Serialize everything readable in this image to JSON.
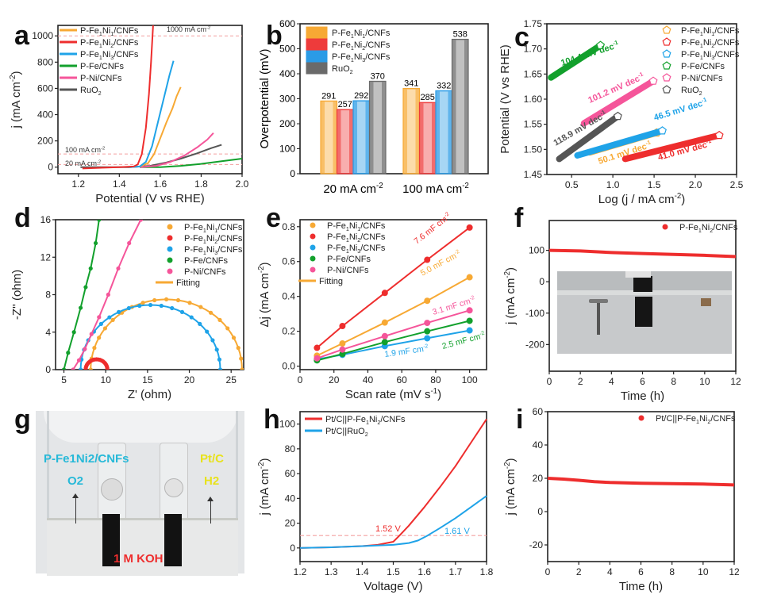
{
  "panel_labels": [
    "a",
    "b",
    "c",
    "d",
    "e",
    "f",
    "g",
    "h",
    "i"
  ],
  "chart_data": [
    {
      "id": "a",
      "type": "line",
      "title": "",
      "xlabel": "Potential (V vs RHE)",
      "ylabel": "j (mA cm-2)",
      "xlim": [
        1.1,
        2.0
      ],
      "ylim": [
        -50,
        1080
      ],
      "xticks": [
        1.2,
        1.4,
        1.6,
        1.8,
        2.0
      ],
      "xtick_labels": [
        "1.2",
        "1.4",
        "1.6",
        "1.8",
        "2.0"
      ],
      "yticks": [
        0,
        200,
        400,
        600,
        800,
        1000
      ],
      "ytick_labels": [
        "0",
        "200",
        "400",
        "600",
        "800",
        "1000"
      ],
      "legend_position": "top-left",
      "reference_lines": [
        {
          "y": 1000,
          "label": "1000 mA cm-2"
        },
        {
          "y": 100,
          "label": "100 mA cm-2"
        },
        {
          "y": 20,
          "label": "20 mA cm-2"
        }
      ],
      "series": [
        {
          "name": "P-Fe1Ni1/CNFs",
          "color": "#f7a934",
          "x": [
            1.45,
            1.5,
            1.54,
            1.57,
            1.6,
            1.63,
            1.66,
            1.68,
            1.7
          ],
          "y": [
            0,
            5,
            30,
            100,
            220,
            340,
            450,
            540,
            610
          ]
        },
        {
          "name": "P-Fe1Ni2/CNFs",
          "color": "#ee2d2d",
          "x": [
            1.22,
            1.4,
            1.47,
            1.49,
            1.51,
            1.53,
            1.545,
            1.555,
            1.565
          ],
          "y": [
            -10,
            0,
            5,
            20,
            100,
            300,
            560,
            800,
            1080
          ]
        },
        {
          "name": "P-Fe1Ni3/CNFs",
          "color": "#1fa3e8",
          "x": [
            1.45,
            1.5,
            1.53,
            1.56,
            1.59,
            1.62,
            1.645,
            1.665
          ],
          "y": [
            0,
            5,
            40,
            160,
            350,
            540,
            700,
            810
          ]
        },
        {
          "name": "P-Fe/CNFs",
          "color": "#12a02c",
          "x": [
            1.5,
            1.6,
            1.7,
            1.8,
            1.9,
            2.0
          ],
          "y": [
            0,
            0,
            10,
            25,
            45,
            65
          ]
        },
        {
          "name": "P-Ni/CNFs",
          "color": "#f5559a",
          "x": [
            1.5,
            1.58,
            1.65,
            1.72,
            1.78,
            1.83,
            1.86
          ],
          "y": [
            0,
            10,
            40,
            90,
            150,
            210,
            260
          ]
        },
        {
          "name": "RuO2",
          "color": "#555555",
          "x": [
            1.21,
            1.45,
            1.55,
            1.63,
            1.7,
            1.78,
            1.85,
            1.9
          ],
          "y": [
            0,
            0,
            10,
            35,
            65,
            105,
            145,
            170
          ]
        }
      ]
    },
    {
      "id": "b",
      "type": "bar",
      "title": "",
      "xlabel": "",
      "ylabel": "Overpotential (mV)",
      "ylim": [
        0,
        600
      ],
      "yticks": [
        0,
        100,
        200,
        300,
        400,
        500,
        600
      ],
      "ytick_labels": [
        "0",
        "100",
        "200",
        "300",
        "400",
        "500",
        "600"
      ],
      "categories": [
        "20 mA cm-2",
        "100 mA cm-2"
      ],
      "legend_position": "top-left",
      "series": [
        {
          "name": "P-Fe1Ni1/CNFs",
          "color": "#f7a934",
          "values": [
            291,
            341
          ]
        },
        {
          "name": "P-Fe1Ni2/CNFs",
          "color": "#ee3b3b",
          "values": [
            257,
            285
          ]
        },
        {
          "name": "P-Fe1Ni3/CNFs",
          "color": "#2a9be6",
          "values": [
            292,
            332
          ]
        },
        {
          "name": "RuO2",
          "color": "#6a6a6a",
          "values": [
            370,
            538
          ]
        }
      ]
    },
    {
      "id": "c",
      "type": "scatter",
      "title": "",
      "xlabel": "Log (j / mA cm-2)",
      "ylabel": "Potential (V vs RHE)",
      "xlim": [
        0.2,
        2.5
      ],
      "ylim": [
        1.45,
        1.75
      ],
      "xticks": [
        0.5,
        1.0,
        1.5,
        2.0,
        2.5
      ],
      "xtick_labels": [
        "0.5",
        "1.0",
        "1.5",
        "2.0",
        "2.5"
      ],
      "yticks": [
        1.45,
        1.5,
        1.55,
        1.6,
        1.65,
        1.7,
        1.75
      ],
      "ytick_labels": [
        "1.45",
        "1.50",
        "1.55",
        "1.60",
        "1.65",
        "1.70",
        "1.75"
      ],
      "legend_position": "top-right",
      "series": [
        {
          "name": "P-Fe1Ni1/CNFs",
          "color": "#f7a934",
          "x_range": [
            0.72,
            1.53
          ],
          "y_range": [
            1.494,
            1.533
          ],
          "annotation": "50.1 mV dec-1"
        },
        {
          "name": "P-Fe1Ni2/CNFs",
          "color": "#ee2d2d",
          "x_range": [
            1.15,
            2.29
          ],
          "y_range": [
            1.481,
            1.528
          ],
          "annotation": "41.0 mV dec-1"
        },
        {
          "name": "P-Fe1Ni3/CNFs",
          "color": "#1fa3e8",
          "x_range": [
            0.57,
            1.6
          ],
          "y_range": [
            1.488,
            1.537
          ],
          "annotation": "46.5 mV dec-1"
        },
        {
          "name": "P-Fe/CNFs",
          "color": "#12a02c",
          "x_range": [
            0.25,
            0.85
          ],
          "y_range": [
            1.643,
            1.707
          ],
          "annotation": "104.4 mV dec-1"
        },
        {
          "name": "P-Ni/CNFs",
          "color": "#f5559a",
          "x_range": [
            0.65,
            1.49
          ],
          "y_range": [
            1.552,
            1.636
          ],
          "annotation": "101.2 mV dec-1"
        },
        {
          "name": "RuO2",
          "color": "#555555",
          "x_range": [
            0.35,
            1.06
          ],
          "y_range": [
            1.481,
            1.566
          ],
          "annotation": "118.9 mV dec-1"
        }
      ]
    },
    {
      "id": "d",
      "type": "scatter",
      "title": "",
      "xlabel": "Z' (ohm)",
      "ylabel": "-Z'' (ohm)",
      "xlim": [
        4,
        26.5
      ],
      "ylim": [
        0,
        16
      ],
      "xticks": [
        5,
        10,
        15,
        20,
        25
      ],
      "xtick_labels": [
        "5",
        "10",
        "15",
        "20",
        "25"
      ],
      "yticks": [
        0,
        4,
        8,
        12,
        16
      ],
      "ytick_labels": [
        "0",
        "4",
        "8",
        "12",
        "16"
      ],
      "legend_position": "top-right",
      "fitting_label": "Fitting",
      "series": [
        {
          "name": "P-Fe1Ni1/CNFs",
          "color": "#f7a934",
          "shape": "semicircle",
          "x_start": 8.2,
          "x_end": 26.3,
          "peak": 7.5
        },
        {
          "name": "P-Fe1Ni2/CNFs",
          "color": "#ee2d2d",
          "shape": "semicircle",
          "x_start": 7.6,
          "x_end": 10.2,
          "peak": 1.1
        },
        {
          "name": "P-Fe1Ni3/CNFs",
          "color": "#1fa3e8",
          "shape": "semicircle",
          "x_start": 7.0,
          "x_end": 23.7,
          "peak": 6.9
        },
        {
          "name": "P-Fe/CNFs",
          "color": "#12a02c",
          "shape": "line",
          "x": [
            5.0,
            5.5,
            6.2,
            7.0,
            7.6,
            8.2,
            8.8,
            9.2
          ],
          "y": [
            0,
            1.8,
            4,
            6.6,
            8.8,
            10.8,
            13.5,
            16
          ]
        },
        {
          "name": "P-Ni/CNFs",
          "color": "#f5559a",
          "shape": "line",
          "x": [
            6.1,
            6.8,
            7.5,
            8.3,
            9.2,
            10.3,
            11.5,
            12.8,
            14.2
          ],
          "y": [
            0,
            1,
            2.2,
            3.8,
            5.6,
            8,
            10.8,
            13.5,
            16
          ]
        }
      ]
    },
    {
      "id": "e",
      "type": "scatter",
      "title": "",
      "xlabel": "Scan rate (mV s-1)",
      "ylabel": "Δj (mA cm-2)",
      "xlim": [
        0,
        110
      ],
      "ylim": [
        -0.02,
        0.84
      ],
      "xticks": [
        0,
        20,
        40,
        60,
        80,
        100
      ],
      "xtick_labels": [
        "0",
        "20",
        "40",
        "60",
        "80",
        "100"
      ],
      "yticks": [
        0,
        0.2,
        0.4,
        0.6,
        0.8
      ],
      "ytick_labels": [
        "0.0",
        "0.2",
        "0.4",
        "0.6",
        "0.8"
      ],
      "legend_position": "top-left",
      "fitting_label": "Fitting",
      "x": [
        10,
        25,
        50,
        75,
        100
      ],
      "series": [
        {
          "name": "P-Fe1Ni1/CNFs",
          "color": "#f7a934",
          "values": [
            0.06,
            0.13,
            0.25,
            0.375,
            0.51
          ],
          "annotation": "5.0 mF cm-2"
        },
        {
          "name": "P-Fe1Ni2/CNFs",
          "color": "#ee2d2d",
          "values": [
            0.105,
            0.23,
            0.42,
            0.61,
            0.795
          ],
          "annotation": "7.6 mF cm-2"
        },
        {
          "name": "P-Fe1Ni3/CNFs",
          "color": "#1fa3e8",
          "values": [
            0.04,
            0.065,
            0.115,
            0.16,
            0.205
          ],
          "annotation": "1.9 mF cm-2"
        },
        {
          "name": "P-Fe/CNFs",
          "color": "#12a02c",
          "values": [
            0.033,
            0.07,
            0.138,
            0.2,
            0.26
          ],
          "annotation": "2.5 mF cm-2"
        },
        {
          "name": "P-Ni/CNFs",
          "color": "#f5559a",
          "values": [
            0.045,
            0.095,
            0.172,
            0.248,
            0.32
          ],
          "annotation": "3.1 mF cm-2"
        }
      ]
    },
    {
      "id": "f",
      "type": "line",
      "title": "",
      "xlabel": "Time (h)",
      "ylabel": "j (mA cm-2)",
      "xlim": [
        0,
        12
      ],
      "ylim": [
        -285,
        195
      ],
      "xticks": [
        0,
        2,
        4,
        6,
        8,
        10,
        12
      ],
      "xtick_labels": [
        "0",
        "2",
        "4",
        "6",
        "8",
        "10",
        "12"
      ],
      "yticks": [
        -200,
        -100,
        0,
        100
      ],
      "ytick_labels": [
        "-200",
        "-100",
        "0",
        "100"
      ],
      "legend_position": "top-right",
      "inset": "photo of electrodes in electrolyte",
      "series": [
        {
          "name": "P-Fe1Ni2/CNFs",
          "color": "#ee2d2d",
          "x": [
            0,
            2,
            4,
            6,
            8,
            10,
            12
          ],
          "y": [
            100,
            98,
            93,
            90,
            87,
            84,
            80
          ]
        }
      ]
    },
    {
      "id": "h",
      "type": "line",
      "title": "",
      "xlabel": "Voltage (V)",
      "ylabel": "j (mA cm-2)",
      "xlim": [
        1.2,
        1.8
      ],
      "ylim": [
        -11,
        110
      ],
      "xticks": [
        1.2,
        1.3,
        1.4,
        1.5,
        1.6,
        1.7,
        1.8
      ],
      "xtick_labels": [
        "1.2",
        "1.3",
        "1.4",
        "1.5",
        "1.6",
        "1.7",
        "1.8"
      ],
      "yticks": [
        0,
        20,
        40,
        60,
        80,
        100
      ],
      "ytick_labels": [
        "0",
        "20",
        "40",
        "60",
        "80",
        "100"
      ],
      "legend_position": "top-left",
      "reference_lines": [
        {
          "y": 10,
          "label": ""
        }
      ],
      "annotations": [
        {
          "text": "1.52 V",
          "color": "#ee2d2d"
        },
        {
          "text": "1.61 V",
          "color": "#1fa3e8"
        }
      ],
      "series": [
        {
          "name": "Pt/C||P-Fe1Ni2/CNFs",
          "color": "#ee2d2d",
          "x": [
            1.2,
            1.3,
            1.4,
            1.45,
            1.5,
            1.52,
            1.55,
            1.6,
            1.65,
            1.7,
            1.75,
            1.8
          ],
          "y": [
            0,
            0.5,
            1.5,
            2.5,
            5,
            10,
            18,
            33,
            49,
            66,
            85,
            104
          ]
        },
        {
          "name": "Pt/C||RuO2",
          "color": "#1fa3e8",
          "x": [
            1.2,
            1.3,
            1.4,
            1.5,
            1.55,
            1.58,
            1.61,
            1.65,
            1.7,
            1.75,
            1.8
          ],
          "y": [
            0,
            0.5,
            1.5,
            2.5,
            4,
            6,
            10,
            16,
            24,
            33,
            42
          ]
        }
      ]
    },
    {
      "id": "i",
      "type": "line",
      "title": "",
      "xlabel": "Time (h)",
      "ylabel": "j (mA cm-2)",
      "xlim": [
        0,
        12
      ],
      "ylim": [
        -30,
        60
      ],
      "xticks": [
        0,
        2,
        4,
        6,
        8,
        10,
        12
      ],
      "xtick_labels": [
        "0",
        "2",
        "4",
        "6",
        "8",
        "10",
        "12"
      ],
      "yticks": [
        -20,
        0,
        20,
        40,
        60
      ],
      "ytick_labels": [
        "-20",
        "0",
        "20",
        "40",
        "60"
      ],
      "legend_position": "top-right",
      "series": [
        {
          "name": "Pt/C||P-Fe1Ni2/CNFs",
          "color": "#ee2d2d",
          "x": [
            0,
            1,
            2,
            3,
            4,
            6,
            8,
            10,
            12
          ],
          "y": [
            20,
            19.5,
            18.8,
            18,
            17.5,
            17,
            16.8,
            16.5,
            16
          ]
        }
      ]
    }
  ],
  "photo_g": {
    "anode_label": "P-Fe1Ni2/CNFs",
    "anode_gas": "O2",
    "cathode_label": "Pt/C",
    "cathode_gas": "H2",
    "electrolyte": "1 M KOH"
  }
}
